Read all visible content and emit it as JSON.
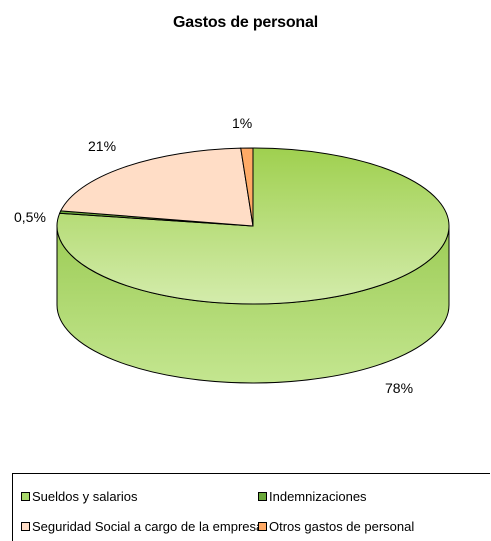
{
  "chart_data": {
    "type": "pie",
    "title": "Gastos de personal",
    "categories": [
      "Sueldos y salarios",
      "Indemnizaciones",
      "Seguridad Social a cargo de la empresa",
      "Otros gastos de personal"
    ],
    "values": [
      78,
      0.5,
      21,
      1
    ],
    "data_labels": [
      "78%",
      "0,5%",
      "21%",
      "1%"
    ],
    "colors": [
      "#a8d86a",
      "#6aa83a",
      "#ffddc6",
      "#ffaa66"
    ],
    "legend_position": "bottom"
  }
}
